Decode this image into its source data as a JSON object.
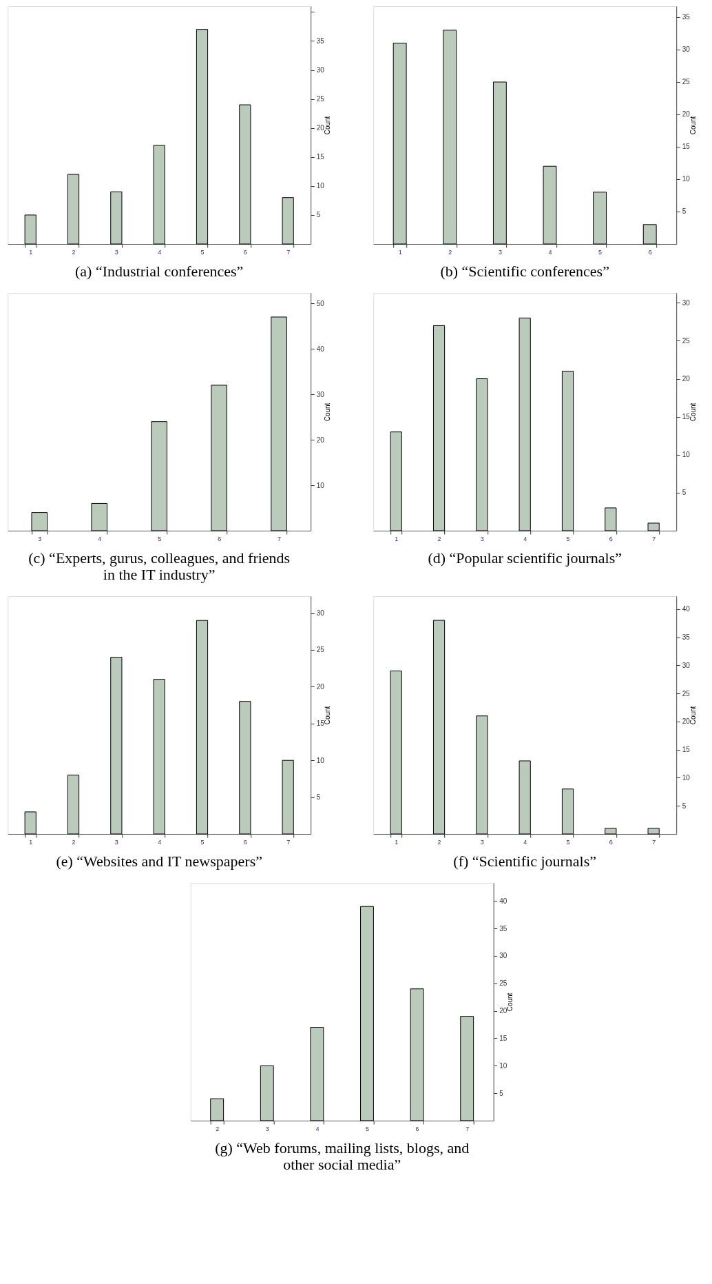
{
  "chart_data": [
    {
      "type": "bar",
      "title": "(a) “Industrial conferences”",
      "ylabel": "Count",
      "categories": [
        "1",
        "2",
        "3",
        "4",
        "5",
        "6",
        "7"
      ],
      "values": [
        5,
        12,
        9,
        17,
        37,
        24,
        8
      ],
      "color": "#bbcbbb",
      "ylim": [
        0,
        41
      ],
      "yticks": [
        5,
        10,
        15,
        20,
        25,
        30,
        35,
        {
          "value": 40,
          "label": null
        }
      ],
      "grid": false
    },
    {
      "type": "bar",
      "title": "(b) “Scientific conferences”",
      "ylabel": "Count",
      "categories": [
        "1",
        "2",
        "3",
        "4",
        "5",
        "6"
      ],
      "values": [
        31,
        33,
        25,
        12,
        8,
        3
      ],
      "color": "#bbcbbb",
      "ylim": [
        0,
        36.7
      ],
      "yticks": [
        5,
        10,
        15,
        20,
        25,
        30,
        35
      ],
      "grid": false
    },
    {
      "type": "bar",
      "title": "(c) “Experts, gurus, colleagues, and friends in the IT industry”",
      "ylabel": "Count",
      "categories": [
        "3",
        "4",
        "5",
        "6",
        "7"
      ],
      "values": [
        4,
        6,
        24,
        32,
        47
      ],
      "color": "#bbcbbb",
      "ylim": [
        0,
        52.3
      ],
      "yticks": [
        10,
        20,
        30,
        40,
        50
      ],
      "grid": false
    },
    {
      "type": "bar",
      "title": "(d) “Popular scientific journals”",
      "ylabel": "Count",
      "categories": [
        "1",
        "2",
        "3",
        "4",
        "5",
        "6",
        "7"
      ],
      "values": [
        13,
        27,
        20,
        28,
        21,
        3,
        1
      ],
      "color": "#bbcbbb",
      "ylim": [
        0,
        31.3
      ],
      "yticks": [
        5,
        10,
        15,
        20,
        25,
        30
      ],
      "grid": false
    },
    {
      "type": "bar",
      "title": "(e) “Websites and IT newspapers”",
      "ylabel": "Count",
      "categories": [
        "1",
        "2",
        "3",
        "4",
        "5",
        "6",
        "7"
      ],
      "values": [
        3,
        8,
        24,
        21,
        29,
        18,
        10
      ],
      "color": "#bbcbbb",
      "ylim": [
        0,
        32.3
      ],
      "yticks": [
        5,
        10,
        15,
        20,
        25,
        30
      ],
      "grid": false
    },
    {
      "type": "bar",
      "title": "(f) “Scientific journals”",
      "ylabel": "Count",
      "categories": [
        "1",
        "2",
        "3",
        "4",
        "5",
        "6",
        "7"
      ],
      "values": [
        29,
        38,
        21,
        13,
        8,
        1,
        1
      ],
      "color": "#bbcbbb",
      "ylim": [
        0,
        42.3
      ],
      "yticks": [
        5,
        10,
        15,
        20,
        25,
        30,
        35,
        40
      ],
      "grid": false
    },
    {
      "type": "bar",
      "title": "(g) “Web forums, mailing lists, blogs, and other social media”",
      "ylabel": "Count",
      "categories": [
        "2",
        "3",
        "4",
        "5",
        "6",
        "7"
      ],
      "values": [
        4,
        10,
        17,
        39,
        24,
        19
      ],
      "color": "#bbcbbb",
      "ylim": [
        0,
        43.3
      ],
      "yticks": [
        5,
        10,
        15,
        20,
        25,
        30,
        35,
        40
      ],
      "grid": false
    }
  ]
}
